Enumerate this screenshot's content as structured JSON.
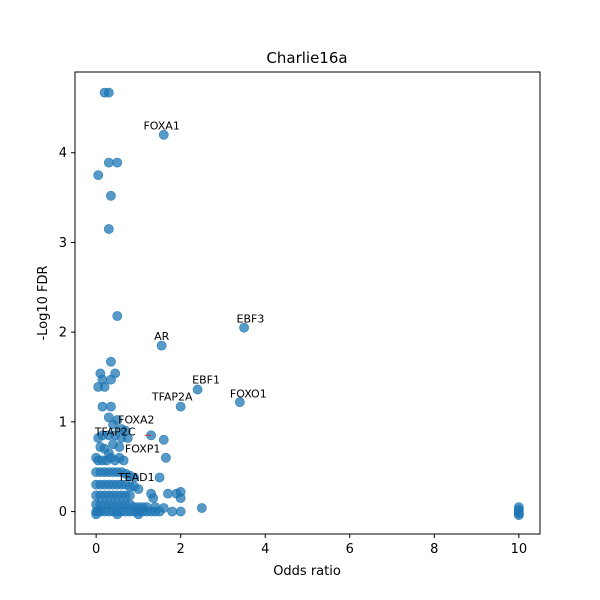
{
  "chart_data": {
    "type": "scatter",
    "title": "Charlie16a",
    "xlabel": "Odds ratio",
    "ylabel": "-Log10 FDR",
    "xlim": [
      -0.5,
      10.5
    ],
    "ylim": [
      -0.25,
      4.9
    ],
    "xticks": [
      0,
      2,
      4,
      6,
      8,
      10
    ],
    "yticks": [
      0,
      1,
      2,
      3,
      4
    ],
    "xtick_labels": [
      "0",
      "2",
      "4",
      "6",
      "8",
      "10"
    ],
    "ytick_labels": [
      "0",
      "1",
      "2",
      "3",
      "4"
    ],
    "grid": false,
    "marker_color": "#1f77b4",
    "line_color": "#d62728",
    "points": [
      [
        0.2,
        4.67
      ],
      [
        0.3,
        4.67
      ],
      [
        1.6,
        4.2
      ],
      [
        0.3,
        3.89
      ],
      [
        0.5,
        3.89
      ],
      [
        0.05,
        3.75
      ],
      [
        0.35,
        3.52
      ],
      [
        0.3,
        3.15
      ],
      [
        0.5,
        2.18
      ],
      [
        3.5,
        2.05
      ],
      [
        1.55,
        1.85
      ],
      [
        0.35,
        1.67
      ],
      [
        0.1,
        1.54
      ],
      [
        0.45,
        1.54
      ],
      [
        0.05,
        1.39
      ],
      [
        0.2,
        1.39
      ],
      [
        0.15,
        1.47
      ],
      [
        0.35,
        1.47
      ],
      [
        2.4,
        1.36
      ],
      [
        3.4,
        1.22
      ],
      [
        0.15,
        1.17
      ],
      [
        0.35,
        1.17
      ],
      [
        2.0,
        1.17
      ],
      [
        0.3,
        1.05
      ],
      [
        0.5,
        1.02
      ],
      [
        0.4,
        0.97
      ],
      [
        0.6,
        0.92
      ],
      [
        0.7,
        0.9
      ],
      [
        0.05,
        0.82
      ],
      [
        0.15,
        0.85
      ],
      [
        0.3,
        0.85
      ],
      [
        0.45,
        0.85
      ],
      [
        0.6,
        0.82
      ],
      [
        0.75,
        0.82
      ],
      [
        1.3,
        0.85
      ],
      [
        1.6,
        0.8
      ],
      [
        0.1,
        0.72
      ],
      [
        0.2,
        0.7
      ],
      [
        0.4,
        0.75
      ],
      [
        0.55,
        0.72
      ],
      [
        0.3,
        0.65
      ],
      [
        0.0,
        0.6
      ],
      [
        0.05,
        0.57
      ],
      [
        0.15,
        0.57
      ],
      [
        0.25,
        0.57
      ],
      [
        0.35,
        0.6
      ],
      [
        0.45,
        0.57
      ],
      [
        0.55,
        0.6
      ],
      [
        0.65,
        0.57
      ],
      [
        1.65,
        0.6
      ],
      [
        0.0,
        0.44
      ],
      [
        0.1,
        0.44
      ],
      [
        0.2,
        0.44
      ],
      [
        0.3,
        0.44
      ],
      [
        0.4,
        0.44
      ],
      [
        0.5,
        0.44
      ],
      [
        0.6,
        0.44
      ],
      [
        0.7,
        0.42
      ],
      [
        0.8,
        0.4
      ],
      [
        0.9,
        0.38
      ],
      [
        1.5,
        0.38
      ],
      [
        0.0,
        0.3
      ],
      [
        0.1,
        0.3
      ],
      [
        0.2,
        0.3
      ],
      [
        0.3,
        0.3
      ],
      [
        0.4,
        0.3
      ],
      [
        0.5,
        0.3
      ],
      [
        0.6,
        0.3
      ],
      [
        0.7,
        0.3
      ],
      [
        0.8,
        0.28
      ],
      [
        0.9,
        0.28
      ],
      [
        1.0,
        0.25
      ],
      [
        0.0,
        0.18
      ],
      [
        0.1,
        0.18
      ],
      [
        0.2,
        0.18
      ],
      [
        0.3,
        0.18
      ],
      [
        0.4,
        0.18
      ],
      [
        0.5,
        0.18
      ],
      [
        0.6,
        0.18
      ],
      [
        0.7,
        0.18
      ],
      [
        0.8,
        0.18
      ],
      [
        1.3,
        0.2
      ],
      [
        1.7,
        0.2
      ],
      [
        1.9,
        0.2
      ],
      [
        2.0,
        0.22
      ],
      [
        2.0,
        0.15
      ],
      [
        1.35,
        0.15
      ],
      [
        0.0,
        0.08
      ],
      [
        0.1,
        0.08
      ],
      [
        0.2,
        0.08
      ],
      [
        0.3,
        0.08
      ],
      [
        0.4,
        0.08
      ],
      [
        0.5,
        0.08
      ],
      [
        0.6,
        0.08
      ],
      [
        0.7,
        0.08
      ],
      [
        0.8,
        0.08
      ],
      [
        0.9,
        0.05
      ],
      [
        1.0,
        0.05
      ],
      [
        1.1,
        0.05
      ],
      [
        1.2,
        0.05
      ],
      [
        1.4,
        0.05
      ],
      [
        1.6,
        0.04
      ],
      [
        2.5,
        0.04
      ],
      [
        0.0,
        0.0
      ],
      [
        0.05,
        0.0
      ],
      [
        0.1,
        0.0
      ],
      [
        0.2,
        0.0
      ],
      [
        0.3,
        0.0
      ],
      [
        0.4,
        0.0
      ],
      [
        0.5,
        0.0
      ],
      [
        0.6,
        0.0
      ],
      [
        0.7,
        0.0
      ],
      [
        0.8,
        0.0
      ],
      [
        0.9,
        0.0
      ],
      [
        1.0,
        0.0
      ],
      [
        1.1,
        0.0
      ],
      [
        1.2,
        0.0
      ],
      [
        1.3,
        0.0
      ],
      [
        1.4,
        0.0
      ],
      [
        1.5,
        0.0
      ],
      [
        1.8,
        0.0
      ],
      [
        2.0,
        0.0
      ],
      [
        0.0,
        -0.03
      ],
      [
        0.5,
        -0.03
      ],
      [
        1.0,
        -0.03
      ],
      [
        10.0,
        0.05
      ],
      [
        10.0,
        0.02
      ],
      [
        10.0,
        0.0
      ],
      [
        10.0,
        -0.02
      ],
      [
        10.0,
        -0.04
      ]
    ],
    "annotations": [
      {
        "text": "FOXA1",
        "x": 1.6,
        "y": 4.2,
        "tx": 1.55,
        "ty": 4.26
      },
      {
        "text": "EBF3",
        "x": 3.5,
        "y": 2.05,
        "tx": 3.65,
        "ty": 2.11
      },
      {
        "text": "AR",
        "x": 1.55,
        "y": 1.85,
        "tx": 1.55,
        "ty": 1.91
      },
      {
        "text": "EBF1",
        "x": 2.4,
        "y": 1.36,
        "tx": 2.6,
        "ty": 1.43
      },
      {
        "text": "TFAP2A",
        "x": 2.0,
        "y": 1.17,
        "tx": 1.8,
        "ty": 1.24
      },
      {
        "text": "FOXO1",
        "x": 3.4,
        "y": 1.22,
        "tx": 3.6,
        "ty": 1.27
      },
      {
        "text": "FOXA2",
        "x": 0.6,
        "y": 0.92,
        "tx": 0.95,
        "ty": 0.98
      },
      {
        "text": "TFAP2C",
        "x": 1.3,
        "y": 0.85,
        "tx": 0.45,
        "ty": 0.85,
        "line": true
      },
      {
        "text": "FOXP1",
        "x": 0.6,
        "y": 0.6,
        "tx": 1.1,
        "ty": 0.66
      },
      {
        "text": "TEAD1",
        "x": 0.9,
        "y": 0.28,
        "tx": 0.95,
        "ty": 0.34
      }
    ]
  }
}
